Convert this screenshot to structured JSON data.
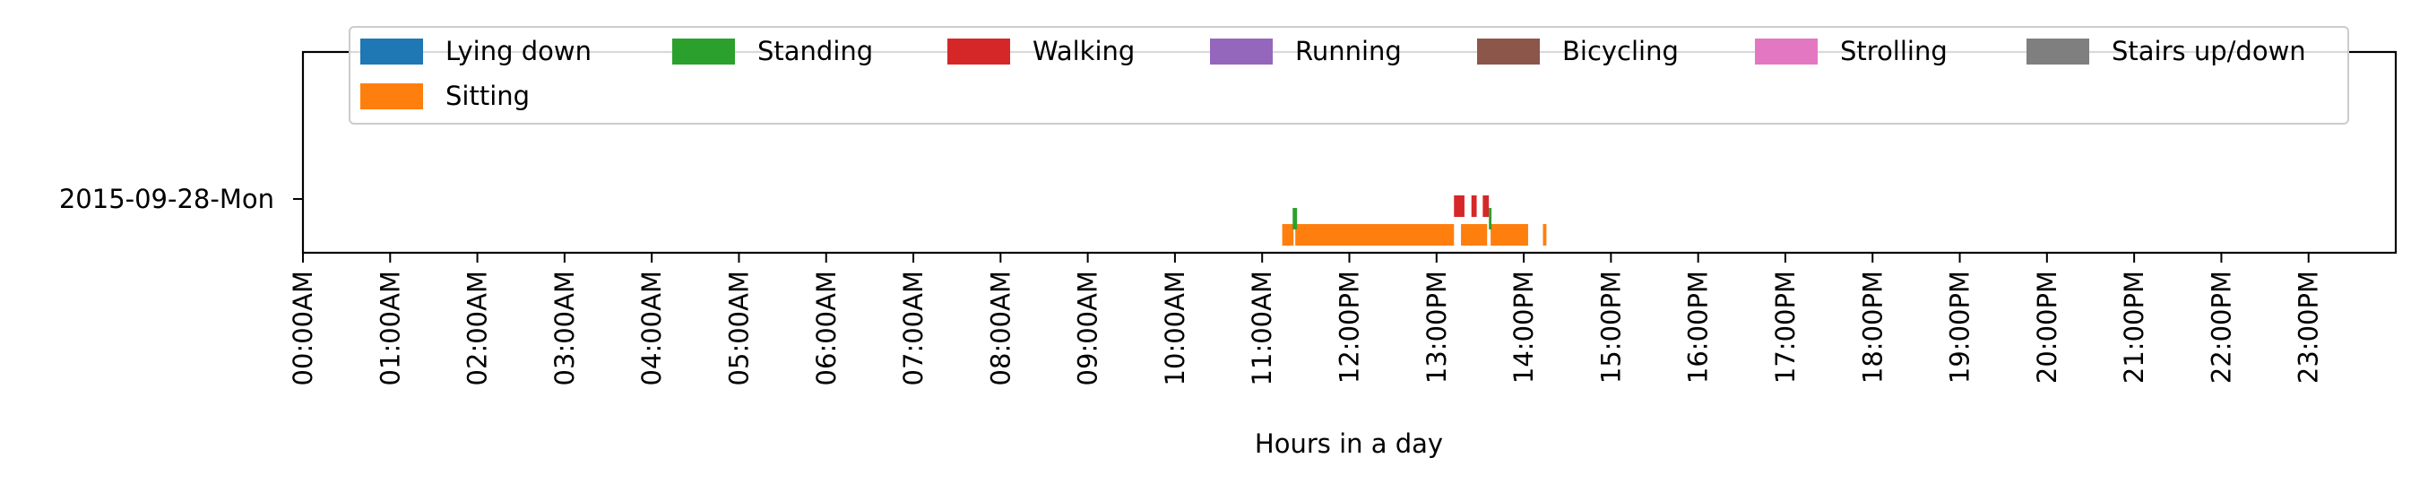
{
  "chart_data": {
    "type": "timeline",
    "xlabel": "Hours in a day",
    "xlim": [
      0,
      24
    ],
    "x_ticks": [
      {
        "value": 0,
        "label": "00:00AM"
      },
      {
        "value": 1,
        "label": "01:00AM"
      },
      {
        "value": 2,
        "label": "02:00AM"
      },
      {
        "value": 3,
        "label": "03:00AM"
      },
      {
        "value": 4,
        "label": "04:00AM"
      },
      {
        "value": 5,
        "label": "05:00AM"
      },
      {
        "value": 6,
        "label": "06:00AM"
      },
      {
        "value": 7,
        "label": "07:00AM"
      },
      {
        "value": 8,
        "label": "08:00AM"
      },
      {
        "value": 9,
        "label": "09:00AM"
      },
      {
        "value": 10,
        "label": "10:00AM"
      },
      {
        "value": 11,
        "label": "11:00AM"
      },
      {
        "value": 12,
        "label": "12:00PM"
      },
      {
        "value": 13,
        "label": "13:00PM"
      },
      {
        "value": 14,
        "label": "14:00PM"
      },
      {
        "value": 15,
        "label": "15:00PM"
      },
      {
        "value": 16,
        "label": "16:00PM"
      },
      {
        "value": 17,
        "label": "17:00PM"
      },
      {
        "value": 18,
        "label": "18:00PM"
      },
      {
        "value": 19,
        "label": "19:00PM"
      },
      {
        "value": 20,
        "label": "20:00PM"
      },
      {
        "value": 21,
        "label": "21:00PM"
      },
      {
        "value": 22,
        "label": "22:00PM"
      },
      {
        "value": 23,
        "label": "23:00PM"
      }
    ],
    "days": [
      "2015-09-28-Mon"
    ],
    "legend": {
      "placement": "top",
      "entries": [
        {
          "name": "Lying down",
          "color": "#1f77b4"
        },
        {
          "name": "Standing",
          "color": "#2ca02c"
        },
        {
          "name": "Walking",
          "color": "#d62728"
        },
        {
          "name": "Running",
          "color": "#9467bd"
        },
        {
          "name": "Bicycling",
          "color": "#8c564b"
        },
        {
          "name": "Strolling",
          "color": "#e377c2"
        },
        {
          "name": "Stairs up/down",
          "color": "#7f7f7f"
        },
        {
          "name": "Sitting",
          "color": "#ff7f0e"
        }
      ]
    },
    "activities": [
      {
        "activity": "Sitting",
        "day": "2015-09-28-Mon",
        "start": 11.23,
        "end": 11.36
      },
      {
        "activity": "Sitting",
        "day": "2015-09-28-Mon",
        "start": 11.38,
        "end": 13.2
      },
      {
        "activity": "Sitting",
        "day": "2015-09-28-Mon",
        "start": 13.28,
        "end": 13.58
      },
      {
        "activity": "Sitting",
        "day": "2015-09-28-Mon",
        "start": 13.62,
        "end": 14.05
      },
      {
        "activity": "Sitting",
        "day": "2015-09-28-Mon",
        "start": 14.22,
        "end": 14.26
      },
      {
        "activity": "Standing",
        "day": "2015-09-28-Mon",
        "start": 11.35,
        "end": 11.4
      },
      {
        "activity": "Standing",
        "day": "2015-09-28-Mon",
        "start": 13.6,
        "end": 13.63
      },
      {
        "activity": "Walking",
        "day": "2015-09-28-Mon",
        "start": 13.2,
        "end": 13.32
      },
      {
        "activity": "Walking",
        "day": "2015-09-28-Mon",
        "start": 13.4,
        "end": 13.46
      },
      {
        "activity": "Walking",
        "day": "2015-09-28-Mon",
        "start": 13.53,
        "end": 13.6
      }
    ]
  }
}
